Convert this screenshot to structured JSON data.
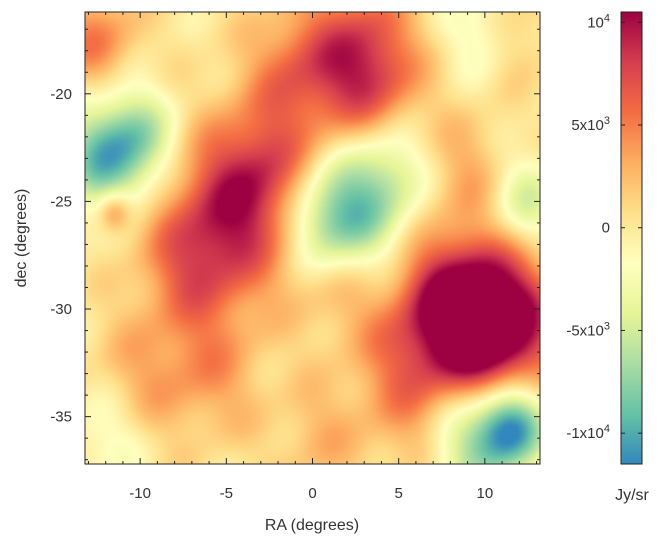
{
  "chart_data": {
    "type": "heatmap",
    "title": "",
    "xlabel": "RA (degrees)",
    "ylabel": "dec (degrees)",
    "xlim": [
      -13.2,
      13.2
    ],
    "ylim": [
      -37.2,
      -16.2
    ],
    "xticks": [
      {
        "value": -10,
        "label": "-10"
      },
      {
        "value": -5,
        "label": "-5"
      },
      {
        "value": 0,
        "label": "0"
      },
      {
        "value": 5,
        "label": "5"
      },
      {
        "value": 10,
        "label": "10"
      }
    ],
    "yticks": [
      {
        "value": -20,
        "label": "-20"
      },
      {
        "value": -25,
        "label": "-25"
      },
      {
        "value": -30,
        "label": "-30"
      },
      {
        "value": -35,
        "label": "-35"
      }
    ],
    "colorbar": {
      "label": "Jy/sr",
      "range": [
        -11500,
        10500
      ],
      "colormap": "Spectral_r",
      "colors": [
        "#3288bd",
        "#66c2a5",
        "#abdda4",
        "#e6f598",
        "#ffffbf",
        "#fee08b",
        "#fdae61",
        "#f46d43",
        "#d53e4f",
        "#9e0142"
      ],
      "ticks": [
        {
          "value": 10000,
          "base": "10",
          "exp": "4"
        },
        {
          "value": 5000,
          "base": "5x10",
          "exp": "3"
        },
        {
          "value": 0,
          "base": "0",
          "exp": ""
        },
        {
          "value": -5000,
          "base": "-5x10",
          "exp": "3"
        },
        {
          "value": -10000,
          "base": "-1x10",
          "exp": "4"
        }
      ]
    },
    "field_features": [
      {
        "ra": -4.5,
        "dec": -25.5,
        "value": 7500,
        "sigma": 2.8
      },
      {
        "ra": -3.0,
        "dec": -23.5,
        "value": 4000,
        "sigma": 2.0
      },
      {
        "ra": -7.0,
        "dec": -28.0,
        "value": 4500,
        "sigma": 2.2
      },
      {
        "ra": -0.5,
        "dec": -19.0,
        "value": 6000,
        "sigma": 2.2
      },
      {
        "ra": 3.5,
        "dec": -19.5,
        "value": 6000,
        "sigma": 2.0
      },
      {
        "ra": 3.0,
        "dec": -17.0,
        "value": 4000,
        "sigma": 2.0
      },
      {
        "ra": -12.5,
        "dec": -17.5,
        "value": 5000,
        "sigma": 1.6
      },
      {
        "ra": -11.5,
        "dec": -25.5,
        "value": 6000,
        "sigma": 0.7
      },
      {
        "ra": 11.0,
        "dec": -30.5,
        "value": 10500,
        "sigma": 2.4
      },
      {
        "ra": 9.0,
        "dec": -31.0,
        "value": 8000,
        "sigma": 2.2
      },
      {
        "ra": 7.5,
        "dec": -29.0,
        "value": 5000,
        "sigma": 2.0
      },
      {
        "ra": 5.0,
        "dec": -32.0,
        "value": 3500,
        "sigma": 2.0
      },
      {
        "ra": 6.0,
        "dec": -35.0,
        "value": 3000,
        "sigma": 2.0
      },
      {
        "ra": 0.5,
        "dec": -36.0,
        "value": 2500,
        "sigma": 2.0
      },
      {
        "ra": -6.0,
        "dec": -33.0,
        "value": 3500,
        "sigma": 2.2
      },
      {
        "ra": -10.0,
        "dec": -33.0,
        "value": 2500,
        "sigma": 2.0
      },
      {
        "ra": 1.5,
        "dec": -29.0,
        "value": 2500,
        "sigma": 1.8
      },
      {
        "ra": 9.0,
        "dec": -23.5,
        "value": 3000,
        "sigma": 1.8
      },
      {
        "ra": 11.5,
        "dec": -17.0,
        "value": 3000,
        "sigma": 1.6
      },
      {
        "ra": -12.0,
        "dec": -23.0,
        "value": -8500,
        "sigma": 1.8
      },
      {
        "ra": -10.0,
        "dec": -22.0,
        "value": -5000,
        "sigma": 1.6
      },
      {
        "ra": 2.5,
        "dec": -25.5,
        "value": -7000,
        "sigma": 2.0
      },
      {
        "ra": 0.5,
        "dec": -26.0,
        "value": -5000,
        "sigma": 1.6
      },
      {
        "ra": 4.5,
        "dec": -23.5,
        "value": -4000,
        "sigma": 1.6
      },
      {
        "ra": 11.5,
        "dec": -35.5,
        "value": -11500,
        "sigma": 1.4
      },
      {
        "ra": 9.0,
        "dec": -36.0,
        "value": -6000,
        "sigma": 1.8
      },
      {
        "ra": 12.5,
        "dec": -25.0,
        "value": -5000,
        "sigma": 1.5
      },
      {
        "ra": 10.0,
        "dec": -17.0,
        "value": -4000,
        "sigma": 1.5
      },
      {
        "ra": -12.0,
        "dec": -36.0,
        "value": -2500,
        "sigma": 1.6
      }
    ]
  }
}
